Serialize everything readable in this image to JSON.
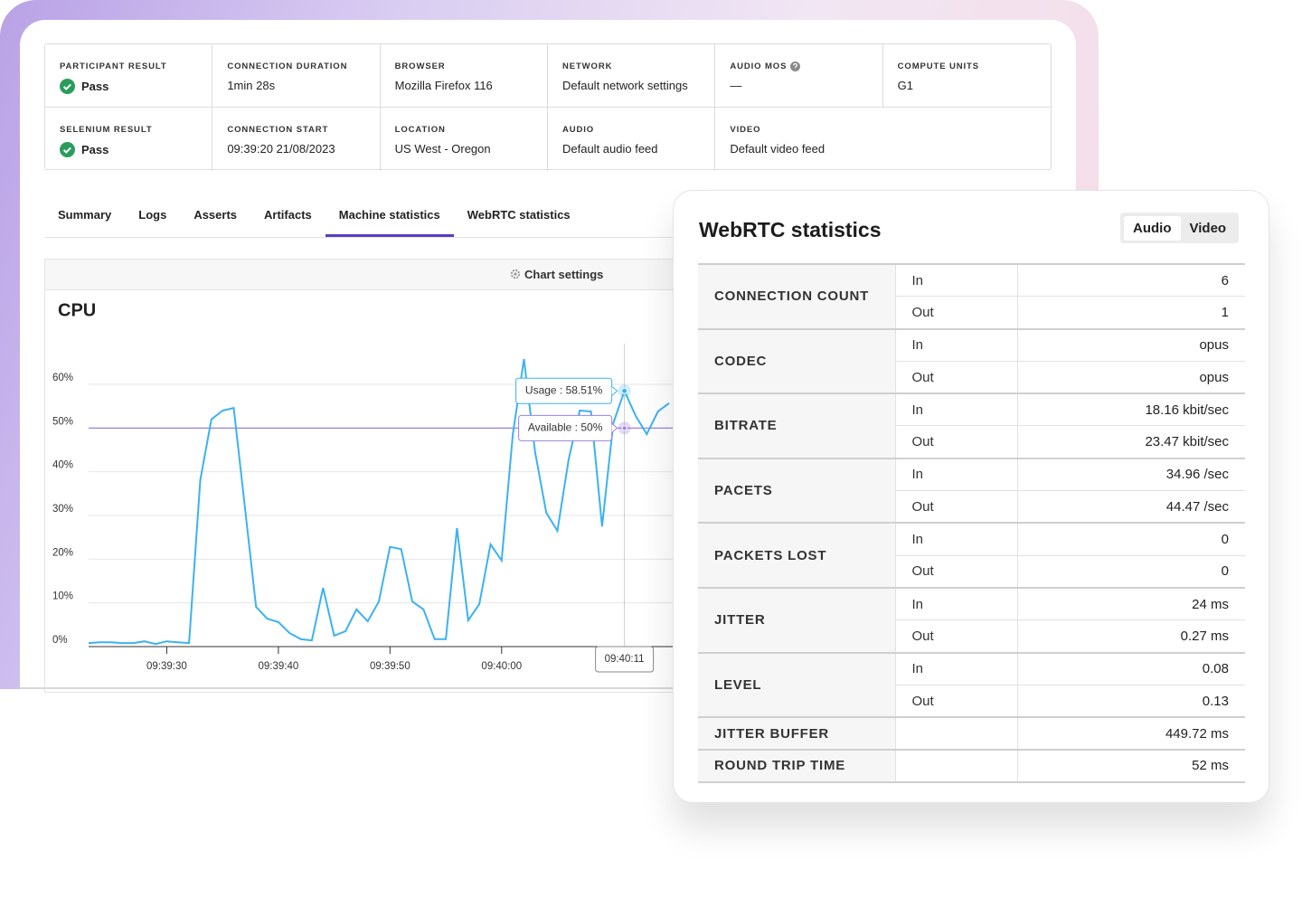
{
  "summary": {
    "rows": [
      [
        {
          "label": "PARTICIPANT RESULT",
          "value": "Pass"
        },
        {
          "label": "CONNECTION DURATION",
          "value": "1min 28s"
        },
        {
          "label": "BROWSER",
          "value": "Mozilla Firefox 116"
        },
        {
          "label": "NETWORK",
          "value": "Default network settings"
        },
        {
          "label": "AUDIO MOS",
          "value": "—"
        },
        {
          "label": "COMPUTE UNITS",
          "value": "G1"
        }
      ],
      [
        {
          "label": "SELENIUM RESULT",
          "value": "Pass"
        },
        {
          "label": "CONNECTION START",
          "value": "09:39:20 21/08/2023"
        },
        {
          "label": "LOCATION",
          "value": "US West - Oregon"
        },
        {
          "label": "AUDIO",
          "value": "Default audio feed"
        },
        {
          "label": "VIDEO",
          "value": "Default video feed"
        }
      ]
    ]
  },
  "tabs": {
    "items": [
      "Summary",
      "Logs",
      "Asserts",
      "Artifacts",
      "Machine statistics",
      "WebRTC statistics"
    ],
    "active": 4
  },
  "toolbar": {
    "label": "Chart settings"
  },
  "chart_data": {
    "type": "line",
    "title": "CPU",
    "color": "#3bb2f2",
    "x": [
      "09:39:23",
      "09:39:24",
      "09:39:25",
      "09:39:26",
      "09:39:27",
      "09:39:28",
      "09:39:29",
      "09:39:30",
      "09:39:31",
      "09:39:32",
      "09:39:33",
      "09:39:34",
      "09:39:35",
      "09:39:36",
      "09:39:37",
      "09:39:38",
      "09:39:39",
      "09:39:40",
      "09:39:41",
      "09:39:42",
      "09:39:43",
      "09:39:44",
      "09:39:45",
      "09:39:46",
      "09:39:47",
      "09:39:48",
      "09:39:49",
      "09:39:50",
      "09:39:51",
      "09:39:52",
      "09:39:53",
      "09:39:54",
      "09:39:55",
      "09:39:56",
      "09:39:57",
      "09:39:58",
      "09:39:59",
      "09:40:00",
      "09:40:01",
      "09:40:02",
      "09:40:03",
      "09:40:04",
      "09:40:05",
      "09:40:06",
      "09:40:07",
      "09:40:08",
      "09:40:09",
      "09:40:10",
      "09:40:11",
      "09:40:12",
      "09:40:13",
      "09:40:14",
      "09:40:15"
    ],
    "values": [
      0.8,
      1.0,
      1.0,
      0.8,
      0.8,
      1.2,
      0.6,
      1.2,
      1.0,
      0.8,
      38.1,
      52,
      54,
      54.6,
      32,
      9.1,
      6.4,
      5.6,
      3.1,
      1.7,
      1.4,
      13.4,
      2.5,
      3.5,
      8.5,
      5.8,
      10.3,
      22.8,
      22.3,
      10.3,
      8.5,
      1.7,
      1.7,
      27.1,
      6,
      9.7,
      23.4,
      19.7,
      48.6,
      65.8,
      44.5,
      30.6,
      26.5,
      42.8,
      54,
      53.8,
      27.5,
      51.1,
      58.51,
      52.8,
      48.6,
      53.8,
      55.7
    ],
    "xlim": [
      "09:39:23",
      "09:40:15"
    ],
    "xticks": [
      "09:39:30",
      "09:39:40",
      "09:39:50",
      "09:40:00"
    ],
    "ylim": [
      0,
      70
    ],
    "yticks": [
      {
        "value": 0,
        "label": "0%"
      },
      {
        "value": 10,
        "label": "10%"
      },
      {
        "value": 20,
        "label": "20%"
      },
      {
        "value": 30,
        "label": "30%"
      },
      {
        "value": 40,
        "label": "40%"
      },
      {
        "value": 50,
        "label": "50%"
      },
      {
        "value": 60,
        "label": "60%"
      }
    ],
    "grid": true,
    "reference_line": {
      "value": 50,
      "color": "#9b82e0"
    },
    "tooltip": {
      "x": "09:40:11",
      "lines": [
        "Usage : 58.51%",
        "Available : 50%"
      ]
    }
  },
  "webrtc": {
    "title": "WebRTC statistics",
    "toggle": {
      "items": [
        "Audio",
        "Video"
      ],
      "active": 0
    },
    "rows": [
      {
        "label": "CONNECTION COUNT",
        "entries": [
          {
            "dir": "In",
            "value": "6"
          },
          {
            "dir": "Out",
            "value": "1"
          }
        ]
      },
      {
        "label": "CODEC",
        "entries": [
          {
            "dir": "In",
            "value": "opus"
          },
          {
            "dir": "Out",
            "value": "opus"
          }
        ]
      },
      {
        "label": "BITRATE",
        "entries": [
          {
            "dir": "In",
            "value": "18.16 kbit/sec"
          },
          {
            "dir": "Out",
            "value": "23.47 kbit/sec"
          }
        ]
      },
      {
        "label": "PACETS",
        "entries": [
          {
            "dir": "In",
            "value": "34.96 /sec"
          },
          {
            "dir": "Out",
            "value": "44.47 /sec"
          }
        ]
      },
      {
        "label": "PACKETS LOST",
        "entries": [
          {
            "dir": "In",
            "value": "0"
          },
          {
            "dir": "Out",
            "value": "0"
          }
        ]
      },
      {
        "label": "JITTER",
        "entries": [
          {
            "dir": "In",
            "value": "24 ms"
          },
          {
            "dir": "Out",
            "value": "0.27 ms"
          }
        ]
      },
      {
        "label": "LEVEL",
        "entries": [
          {
            "dir": "In",
            "value": "0.08"
          },
          {
            "dir": "Out",
            "value": "0.13"
          }
        ]
      },
      {
        "label": "JITTER BUFFER",
        "entries": [
          {
            "value": "449.72 ms"
          }
        ]
      },
      {
        "label": "ROUND TRIP TIME",
        "entries": [
          {
            "value": "52 ms"
          }
        ]
      }
    ]
  }
}
